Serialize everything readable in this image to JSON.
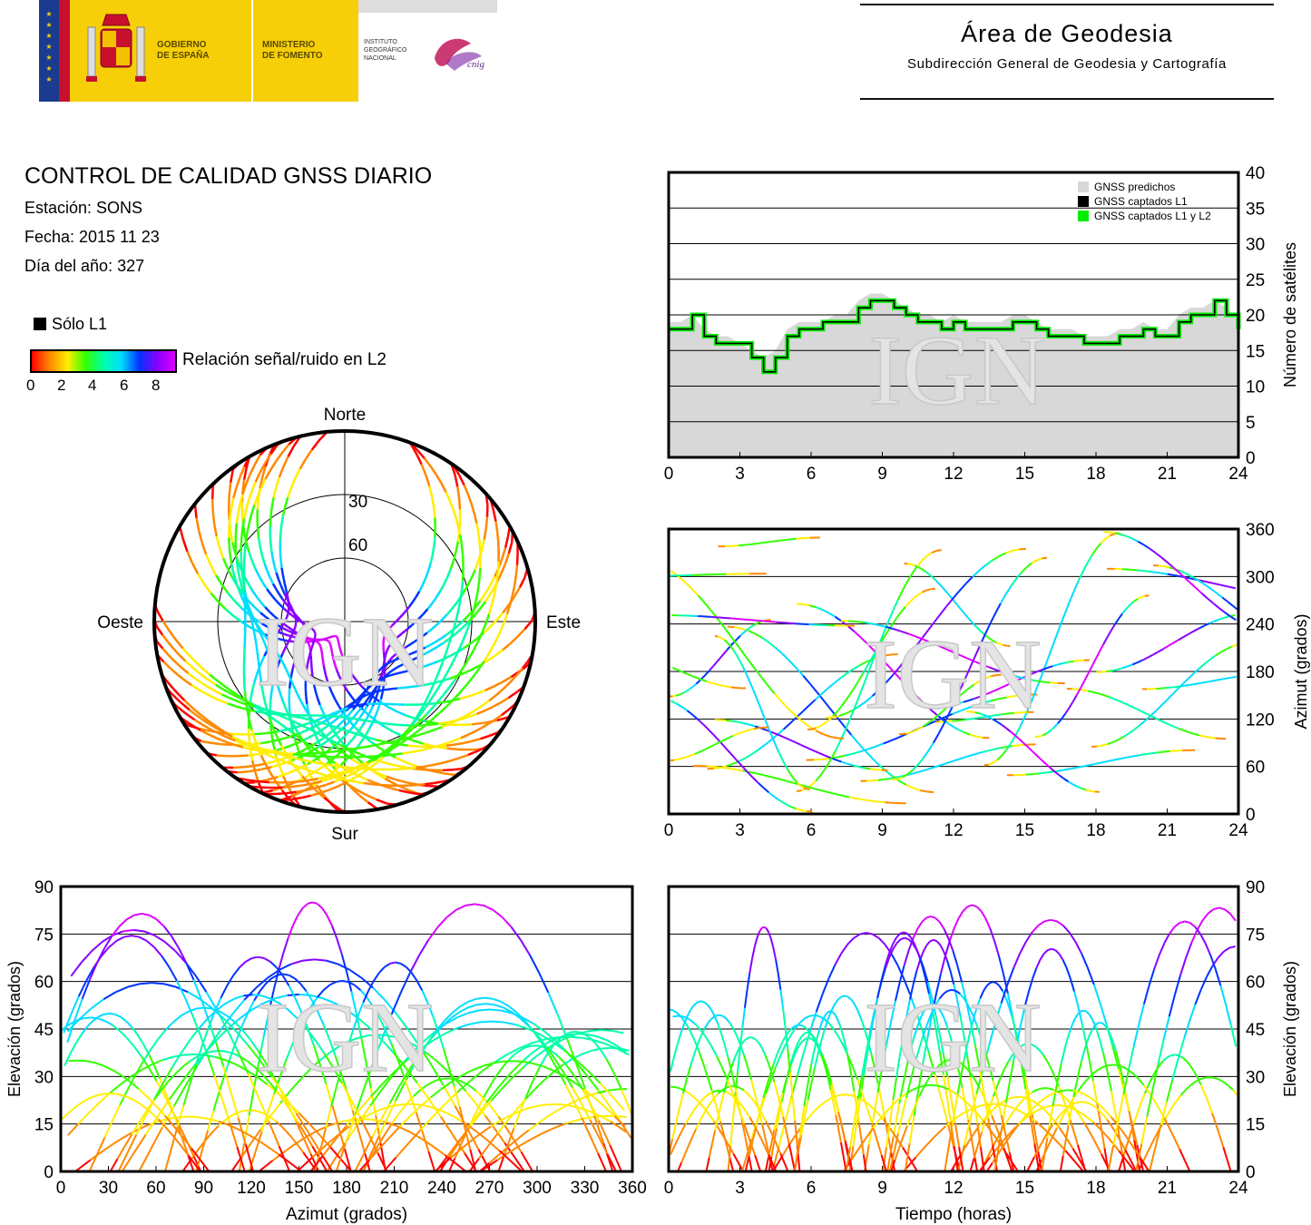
{
  "header": {
    "gobierno": "GOBIERNO\nDE ESPAÑA",
    "ministerio": "MINISTERIO\nDE FOMENTO",
    "instituto": "INSTITUTO\nGEOGRÁFICO\nNACIONAL",
    "cnig": "cnig",
    "area_title": "Área de Geodesia",
    "area_subtitle": "Subdirección General de Geodesia y Cartografía",
    "colors": {
      "gov_yellow": "#f6cf08",
      "gov_red": "#c8102e",
      "eu_blue": "#1a3b8f",
      "ign_magenta": "#c2185b"
    }
  },
  "report": {
    "title": "CONTROL DE CALIDAD GNSS DIARIO",
    "station": "Estación: SONS",
    "date": "Fecha: 2015 11 23",
    "doy": "Día del año: 327"
  },
  "legend": {
    "l1_only": "Sólo L1",
    "snr_label": "Relación señal/ruido en L2",
    "snr_ticks": [
      "0",
      "2",
      "4",
      "6",
      "8"
    ],
    "colormap": [
      "#ff0000",
      "#ff8800",
      "#ffee00",
      "#33ff00",
      "#00ffaa",
      "#00ddff",
      "#0033ff",
      "#8800ff",
      "#dd00ff"
    ]
  },
  "watermark": "IGN",
  "chart_data": [
    {
      "id": "satellites",
      "type": "line",
      "ylabel": "Número de satélites",
      "xlim": [
        0,
        24
      ],
      "ylim": [
        0,
        40
      ],
      "xticks": [
        "0",
        "3",
        "6",
        "9",
        "12",
        "15",
        "18",
        "21",
        "24"
      ],
      "yticks": [
        "0",
        "5",
        "10",
        "15",
        "20",
        "25",
        "30",
        "35",
        "40"
      ],
      "legend_position": "top-right",
      "legend": [
        "GNSS predichos",
        "GNSS captados L1",
        "GNSS captados L1 y L2"
      ],
      "series_colors": [
        "#d8d8d8",
        "#000000",
        "#00ee00"
      ],
      "x": [
        0,
        0.5,
        1,
        1.5,
        2,
        2.5,
        3,
        3.5,
        4,
        4.5,
        5,
        5.5,
        6,
        6.5,
        7,
        7.5,
        8,
        8.5,
        9,
        9.5,
        10,
        10.5,
        11,
        11.5,
        12,
        12.5,
        13,
        13.5,
        14,
        14.5,
        15,
        15.5,
        16,
        16.5,
        17,
        17.5,
        18,
        18.5,
        19,
        19.5,
        20,
        20.5,
        21,
        21.5,
        22,
        22.5,
        23,
        23.5,
        24
      ],
      "series": [
        {
          "name": "GNSS predichos",
          "values": [
            19,
            19,
            20,
            18,
            17,
            17,
            16,
            15,
            14,
            15,
            18,
            19,
            19,
            19,
            20,
            20,
            22,
            23,
            23,
            22,
            21,
            20,
            20,
            19,
            20,
            19,
            19,
            19,
            19,
            20,
            20,
            19,
            18,
            18,
            18,
            17,
            17,
            17,
            18,
            18,
            19,
            18,
            18,
            20,
            21,
            21,
            22,
            21,
            19
          ]
        },
        {
          "name": "GNSS captados L1",
          "values": [
            18,
            18,
            20,
            17,
            16,
            16,
            16,
            14,
            12,
            14,
            17,
            18,
            18,
            19,
            19,
            19,
            21,
            22,
            22,
            21,
            20,
            19,
            19,
            18,
            19,
            18,
            18,
            18,
            18,
            19,
            19,
            18,
            17,
            17,
            17,
            16,
            16,
            16,
            17,
            17,
            18,
            17,
            17,
            19,
            20,
            20,
            22,
            20,
            18
          ]
        },
        {
          "name": "GNSS captados L1 y L2",
          "values": [
            18,
            18,
            20,
            17,
            16,
            16,
            16,
            14,
            12,
            14,
            17,
            18,
            18,
            19,
            19,
            19,
            21,
            22,
            22,
            21,
            20,
            19,
            19,
            18,
            19,
            18,
            18,
            18,
            18,
            19,
            19,
            18,
            17,
            17,
            17,
            16,
            16,
            16,
            17,
            17,
            18,
            17,
            17,
            19,
            20,
            20,
            22,
            20,
            18
          ]
        }
      ]
    },
    {
      "id": "skyplot",
      "type": "scatter",
      "directions": [
        "Norte",
        "Sur",
        "Oeste",
        "Este"
      ],
      "elevation_rings": [
        "30",
        "60"
      ],
      "description_level": "satellite tracks colored by L2 SNR (0-9)",
      "tracks": [
        {
          "az_start": 300,
          "az_end": 120,
          "max_el": 82,
          "snr": 9
        },
        {
          "az_start": 330,
          "az_end": 170,
          "max_el": 75,
          "snr": 8
        },
        {
          "az_start": 20,
          "az_end": 200,
          "max_el": 70,
          "snr": 9
        },
        {
          "az_start": 60,
          "az_end": 220,
          "max_el": 62,
          "snr": 7
        },
        {
          "az_start": 150,
          "az_end": 330,
          "max_el": 55,
          "snr": 6
        },
        {
          "az_start": 110,
          "az_end": 260,
          "max_el": 45,
          "snr": 5
        },
        {
          "az_start": 200,
          "az_end": 20,
          "max_el": 40,
          "snr": 4
        },
        {
          "az_start": 240,
          "az_end": 100,
          "max_el": 30,
          "snr": 3
        }
      ]
    },
    {
      "id": "azimuth_time",
      "type": "scatter",
      "ylabel": "Azimut (grados)",
      "xlim": [
        0,
        24
      ],
      "ylim": [
        0,
        360
      ],
      "xticks": [
        "0",
        "3",
        "6",
        "9",
        "12",
        "15",
        "18",
        "21",
        "24"
      ],
      "yticks": [
        "0",
        "60",
        "120",
        "180",
        "240",
        "300",
        "360"
      ]
    },
    {
      "id": "elevation_azimuth",
      "type": "scatter",
      "xlabel": "Azimut (grados)",
      "ylabel": "Elevación (grados)",
      "xlim": [
        0,
        360
      ],
      "ylim": [
        0,
        90
      ],
      "xticks": [
        "0",
        "30",
        "60",
        "90",
        "120",
        "150",
        "180",
        "210",
        "240",
        "270",
        "300",
        "330",
        "360"
      ],
      "yticks": [
        "0",
        "15",
        "30",
        "45",
        "60",
        "75",
        "90"
      ]
    },
    {
      "id": "elevation_time",
      "type": "scatter",
      "xlabel": "Tiempo (horas)",
      "ylabel": "Elevación (grados)",
      "xlim": [
        0,
        24
      ],
      "ylim": [
        0,
        90
      ],
      "xticks": [
        "0",
        "3",
        "6",
        "9",
        "12",
        "15",
        "18",
        "21",
        "24"
      ],
      "yticks": [
        "0",
        "15",
        "30",
        "45",
        "60",
        "75",
        "90"
      ]
    }
  ]
}
